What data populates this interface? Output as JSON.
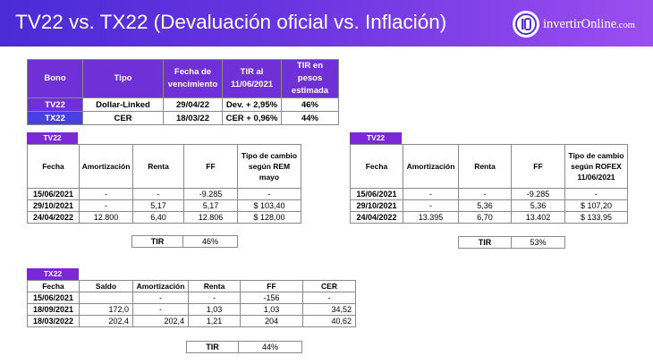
{
  "header": {
    "title": "TV22 vs. TX22 (Devaluación oficial vs. Inflación)",
    "logo_main": "invertirOnline",
    "logo_domain": ".com",
    "logo_icon": "io-monogram-icon"
  },
  "summary": {
    "headers": [
      "Bono",
      "Tipo",
      "Fecha de vencimiento",
      "TIR al 11/06/2021",
      "TIR en pesos estimada"
    ],
    "rows": [
      [
        "TV22",
        "Dollar-Linked",
        "29/04/22",
        "Dev. + 2,95%",
        "46%"
      ],
      [
        "TX22",
        "CER",
        "18/03/22",
        "CER + 0,96%",
        "44%"
      ]
    ]
  },
  "tv22_rem": {
    "tag": "TV22",
    "headers": [
      "Fecha",
      "Amortización",
      "Renta",
      "FF",
      "Tipo de cambio según REM mayo"
    ],
    "rows": [
      [
        "15/06/2021",
        "-",
        "-",
        "-9.285",
        "-"
      ],
      [
        "29/10/2021",
        "-",
        "5,17",
        "5,17",
        "$ 103,40"
      ],
      [
        "24/04/2022",
        "12.800",
        "6,40",
        "12.806",
        "$ 128,00"
      ]
    ],
    "tir_label": "TIR",
    "tir_value": "46%"
  },
  "tv22_rofex": {
    "tag": "TV22",
    "headers": [
      "Fecha",
      "Amortización",
      "Renta",
      "FF",
      "Tipo de cambio según ROFEX 11/06/2021"
    ],
    "rows": [
      [
        "15/06/2021",
        "-",
        "-",
        "-9.285",
        "-"
      ],
      [
        "29/10/2021",
        "-",
        "5,36",
        "5,36",
        "$ 107,20"
      ],
      [
        "24/04/2022",
        "13.395",
        "6,70",
        "13.402",
        "$ 133,95"
      ]
    ],
    "tir_label": "TIR",
    "tir_value": "53%"
  },
  "tx22": {
    "tag": "TX22",
    "headers": [
      "Fecha",
      "Saldo",
      "Amortización",
      "Renta",
      "FF",
      "CER"
    ],
    "rows": [
      [
        "15/06/2021",
        "",
        "-",
        "-",
        "-156",
        "-"
      ],
      [
        "18/09/2021",
        "172,0",
        "-",
        "1,03",
        "1,03",
        "34,52"
      ],
      [
        "18/03/2022",
        "202,4",
        "202,4",
        "1,21",
        "204",
        "40,62"
      ]
    ],
    "tir_label": "TIR",
    "tir_value": "44%"
  },
  "colors": {
    "header_start": "#4a2bd6",
    "header_end": "#9b4ef0",
    "tag": "#7a28d8",
    "summary_header": "#7030d8"
  }
}
